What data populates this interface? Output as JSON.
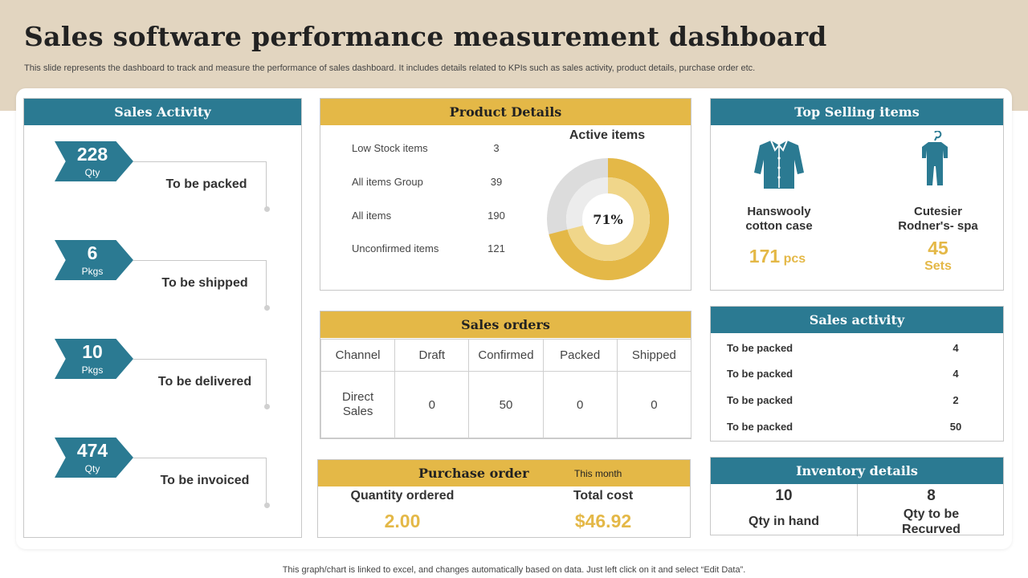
{
  "header": {
    "title": "Sales software performance measurement dashboard",
    "subtitle": "This slide represents the dashboard to track and measure the performance of sales dashboard. It includes details related to KPIs such as sales activity, product details, purchase order etc."
  },
  "sales_activity": {
    "title": "Sales Activity",
    "items": [
      {
        "value": "228",
        "unit": "Qty",
        "label": "To be packed"
      },
      {
        "value": "6",
        "unit": "Pkgs",
        "label": "To be shipped"
      },
      {
        "value": "10",
        "unit": "Pkgs",
        "label": "To be delivered"
      },
      {
        "value": "474",
        "unit": "Qty",
        "label": "To be invoiced"
      }
    ]
  },
  "product_details": {
    "title": "Product Details",
    "rows": [
      {
        "label": "Low Stock items",
        "value": "3"
      },
      {
        "label": "All items Group",
        "value": "39"
      },
      {
        "label": "All items",
        "value": "190"
      },
      {
        "label": "Unconfirmed  items",
        "value": "121"
      }
    ],
    "active_items_title": "Active items",
    "active_percent_label": "71%",
    "active_fraction": 0.71
  },
  "sales_orders": {
    "title": "Sales orders",
    "headers": [
      "Channel",
      "Draft",
      "Confirmed",
      "Packed",
      "Shipped"
    ],
    "row": [
      "Direct Sales",
      "0",
      "50",
      "0",
      "0"
    ]
  },
  "purchase_order": {
    "title": "Purchase order",
    "period": "This month",
    "qty_label": "Quantity ordered",
    "qty_value": "2.00",
    "cost_label": "Total cost",
    "cost_value": "$46.92"
  },
  "top_selling": {
    "title": "Top Selling items",
    "items": [
      {
        "icon": "shirt-icon",
        "name_line1": "Hanswooly",
        "name_line2": "cotton case",
        "value": "171",
        "unit": "pcs"
      },
      {
        "icon": "jumpsuit-hanger-icon",
        "name_line1": "Cutesier",
        "name_line2": "Rodner's- spa",
        "value": "45",
        "unit": "Sets"
      }
    ]
  },
  "sales_activity_table": {
    "title": "Sales activity",
    "rows": [
      {
        "label": "To be packed",
        "value": "4"
      },
      {
        "label": "To be packed",
        "value": "4"
      },
      {
        "label": "To be packed",
        "value": "2"
      },
      {
        "label": "To be packed",
        "value": "50"
      }
    ]
  },
  "inventory": {
    "title": "Inventory details",
    "in_hand_value": "10",
    "in_hand_label": "Qty in hand",
    "recurved_value": "8",
    "recurved_line1": "Qty to be",
    "recurved_line2": "Recurved"
  },
  "footer": "This graph/chart is linked to excel,  and changes automatically based on data. Just left click on it and select “Edit Data”.",
  "colors": {
    "teal": "#2b7a92",
    "gold": "#e4b847",
    "beige": "#e2d5c0"
  }
}
